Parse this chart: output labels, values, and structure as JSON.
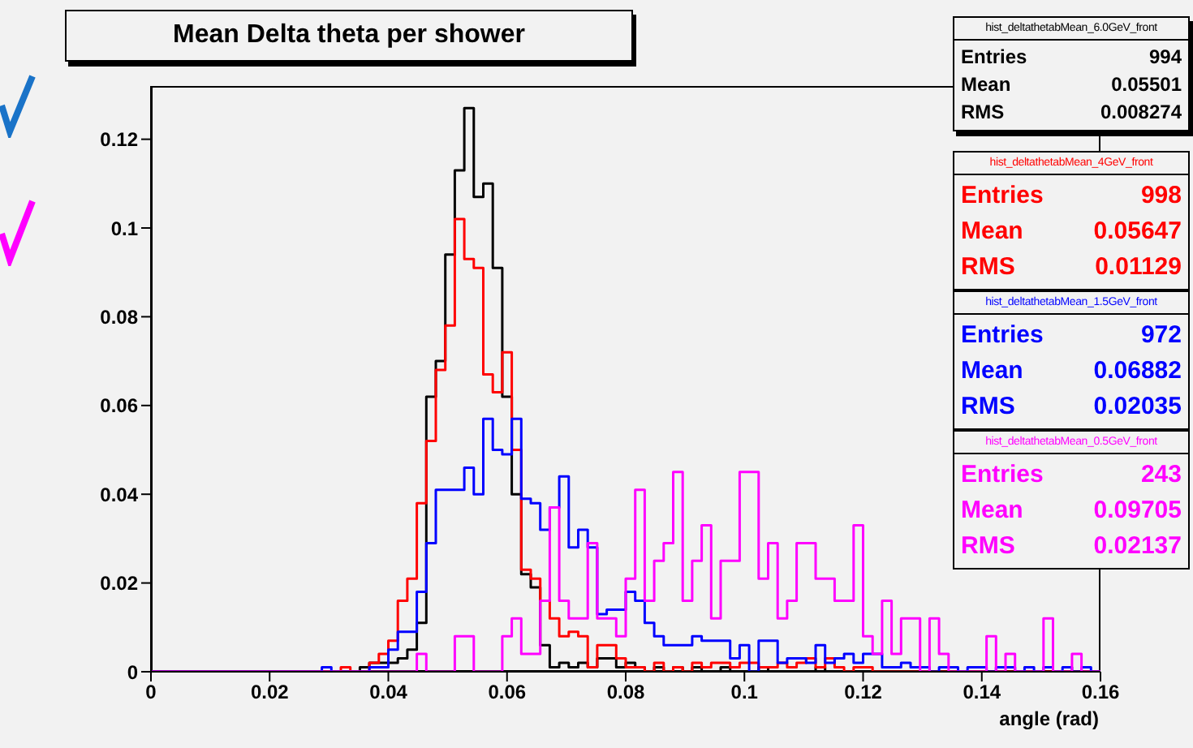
{
  "chart_data": {
    "type": "histogram",
    "title": "Mean Delta theta per shower",
    "xlabel": "angle (rad)",
    "bins": [
      0,
      0.0016,
      0.0032,
      0.0048,
      0.0064,
      0.008,
      0.0096,
      0.0112,
      0.0128,
      0.0144,
      0.016,
      0.0176,
      0.0192,
      0.0208,
      0.0224,
      0.024,
      0.0256,
      0.0272,
      0.0288,
      0.0304,
      0.032,
      0.0336,
      0.0352,
      0.0368,
      0.0384,
      0.04,
      0.0416,
      0.0432,
      0.0448,
      0.0464,
      0.048,
      0.0496,
      0.0512,
      0.0528,
      0.0544,
      0.056,
      0.0576,
      0.0592,
      0.0608,
      0.0624,
      0.064,
      0.0656,
      0.0672,
      0.0688,
      0.0704,
      0.072,
      0.0736,
      0.0752,
      0.0768,
      0.0784,
      0.08,
      0.0816,
      0.0832,
      0.0848,
      0.0864,
      0.088,
      0.0896,
      0.0912,
      0.0928,
      0.0944,
      0.096,
      0.0976,
      0.0992,
      0.1008,
      0.1024,
      0.104,
      0.1056,
      0.1072,
      0.1088,
      0.1104,
      0.112,
      0.1136,
      0.1152,
      0.1168,
      0.1184,
      0.12,
      0.1216,
      0.1232,
      0.1248,
      0.1264,
      0.128,
      0.1296,
      0.1312,
      0.1328,
      0.1344,
      0.136,
      0.1376,
      0.1392,
      0.1408,
      0.1424,
      0.144,
      0.1456,
      0.1472,
      0.1488,
      0.1504,
      0.152,
      0.1536,
      0.1552,
      0.1568,
      0.1584,
      0.16
    ],
    "series": [
      {
        "name": "hist_deltathetabMean_6.0GeV_front",
        "color": "#000000",
        "values": [
          0,
          0,
          0,
          0,
          0,
          0,
          0,
          0,
          0,
          0,
          0,
          0,
          0,
          0,
          0,
          0,
          0,
          0,
          0,
          0,
          0,
          0,
          0.001,
          0.002,
          0.002,
          0.002,
          0.003,
          0.005,
          0.011,
          0.062,
          0.07,
          0.094,
          0.113,
          0.127,
          0.107,
          0.11,
          0.091,
          0.062,
          0.04,
          0.022,
          0.019,
          0.006,
          0.001,
          0.002,
          0.001,
          0.002,
          0.001,
          0.003,
          0.003,
          0.001,
          0.002,
          0.001,
          0,
          0.001,
          0,
          0.001,
          0,
          0.001,
          0,
          0,
          0.001,
          0,
          0,
          0,
          0.001,
          0,
          0,
          0,
          0,
          0,
          0.001,
          0,
          0,
          0,
          0,
          0,
          0,
          0,
          0,
          0,
          0,
          0,
          0,
          0,
          0,
          0,
          0,
          0,
          0,
          0,
          0,
          0,
          0,
          0,
          0,
          0,
          0,
          0,
          0,
          0
        ]
      },
      {
        "name": "hist_deltathetabMean_4GeV_front",
        "color": "#ff0000",
        "values": [
          0,
          0,
          0,
          0,
          0,
          0,
          0,
          0,
          0,
          0,
          0,
          0,
          0,
          0,
          0,
          0,
          0,
          0,
          0,
          0,
          0.001,
          0,
          0,
          0.002,
          0.004,
          0.007,
          0.016,
          0.021,
          0.038,
          0.052,
          0.068,
          0.078,
          0.102,
          0.093,
          0.091,
          0.067,
          0.063,
          0.072,
          0.05,
          0.023,
          0.021,
          0.016,
          0.012,
          0.008,
          0.009,
          0.008,
          0.001,
          0.006,
          0.006,
          0.003,
          0.001,
          0.001,
          0,
          0.002,
          0,
          0.001,
          0,
          0.002,
          0.001,
          0.002,
          0.002,
          0.001,
          0.002,
          0.002,
          0.001,
          0.001,
          0.002,
          0.001,
          0.002,
          0.003,
          0.001,
          0.003,
          0.001,
          0,
          0.001,
          0.001,
          0,
          0,
          0,
          0,
          0,
          0,
          0,
          0,
          0,
          0,
          0,
          0,
          0,
          0,
          0,
          0,
          0,
          0,
          0,
          0,
          0,
          0,
          0,
          0
        ]
      },
      {
        "name": "hist_deltathetabMean_1.5GeV_front",
        "color": "#0000ff",
        "values": [
          0,
          0,
          0,
          0,
          0,
          0,
          0,
          0,
          0,
          0,
          0,
          0,
          0,
          0,
          0,
          0,
          0,
          0,
          0.001,
          0,
          0,
          0,
          0,
          0.001,
          0.001,
          0.005,
          0.009,
          0.009,
          0.018,
          0.029,
          0.041,
          0.041,
          0.041,
          0.046,
          0.04,
          0.057,
          0.05,
          0.049,
          0.057,
          0.039,
          0.038,
          0.032,
          0.037,
          0.044,
          0.028,
          0.032,
          0.028,
          0.013,
          0.014,
          0.014,
          0.018,
          0.016,
          0.011,
          0.008,
          0.006,
          0.006,
          0.006,
          0.008,
          0.007,
          0.007,
          0.007,
          0.003,
          0.006,
          0,
          0.007,
          0.007,
          0.002,
          0.003,
          0.003,
          0.002,
          0.006,
          0.002,
          0.003,
          0.004,
          0.002,
          0.004,
          0.004,
          0.001,
          0.001,
          0.002,
          0.001,
          0.001,
          0,
          0.001,
          0.001,
          0,
          0.001,
          0.001,
          0,
          0.001,
          0.001,
          0,
          0.001,
          0,
          0.001,
          0,
          0.001,
          0,
          0.001,
          0
        ]
      },
      {
        "name": "hist_deltathetabMean_0.5GeV_front",
        "color": "#ff00ff",
        "values": [
          0,
          0,
          0,
          0,
          0,
          0,
          0,
          0,
          0,
          0,
          0,
          0,
          0,
          0,
          0,
          0,
          0,
          0,
          0,
          0,
          0,
          0,
          0,
          0,
          0,
          0,
          0,
          0,
          0.004,
          0,
          0,
          0,
          0.008,
          0.008,
          0,
          0,
          0,
          0.008,
          0.012,
          0.004,
          0.004,
          0.016,
          0.037,
          0.016,
          0.012,
          0.012,
          0.029,
          0.012,
          0.012,
          0.008,
          0.021,
          0.041,
          0.016,
          0.025,
          0.029,
          0.045,
          0.016,
          0.025,
          0.033,
          0.012,
          0.025,
          0.025,
          0.045,
          0.045,
          0.021,
          0.029,
          0.012,
          0.016,
          0.029,
          0.029,
          0.021,
          0.021,
          0.016,
          0.016,
          0.033,
          0.008,
          0.004,
          0.016,
          0.004,
          0.012,
          0.012,
          0,
          0.012,
          0.004,
          0,
          0,
          0,
          0,
          0.008,
          0,
          0.004,
          0,
          0,
          0,
          0.012,
          0,
          0,
          0.004,
          0,
          0
        ]
      }
    ],
    "xlim": [
      0,
      0.16
    ],
    "xticks": [
      0,
      0.02,
      0.04,
      0.06,
      0.08,
      0.1,
      0.12,
      0.14,
      0.16
    ],
    "ylim": [
      0,
      0.132
    ],
    "yticks": [
      0,
      0.02,
      0.04,
      0.06,
      0.08,
      0.1,
      0.12
    ],
    "legend": "top right",
    "annotations": [
      "Entries",
      "994",
      "Mean",
      "0.05501",
      "RMS",
      "0.008274",
      "Entries",
      "998",
      "Mean",
      "0.05647",
      "RMS",
      "0.01129",
      "Entries",
      "972",
      "Mean",
      "0.06882",
      "RMS",
      "0.02035",
      "Entries",
      "243",
      "Mean",
      "0.09705",
      "RMS",
      "0.02137"
    ]
  }
}
